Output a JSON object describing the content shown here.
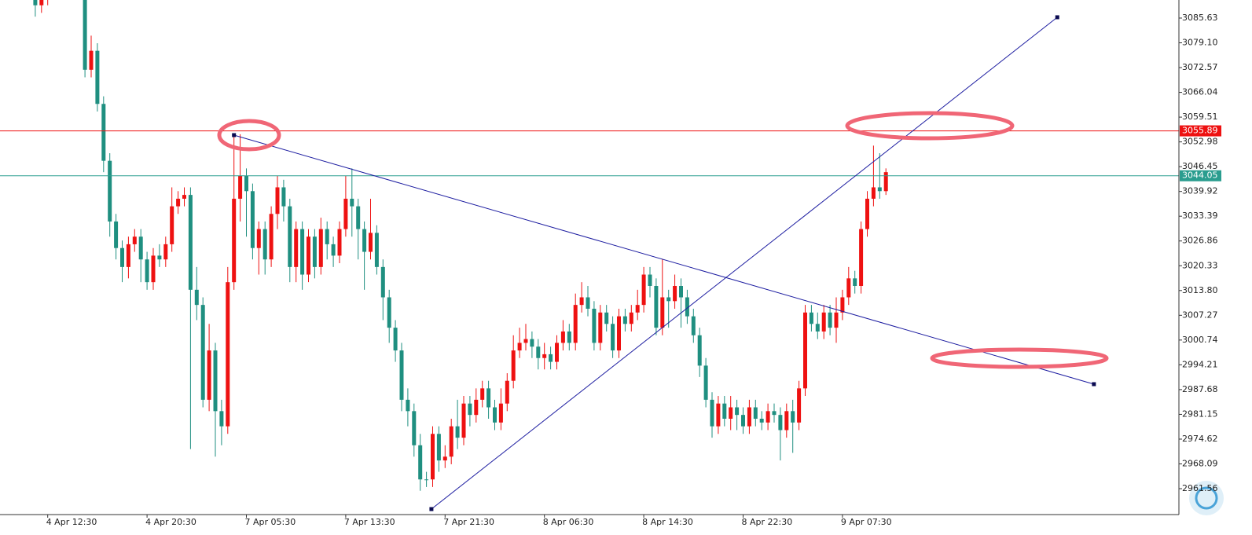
{
  "chart_data": {
    "type": "candlestick",
    "up_color": "#ee1111",
    "down_color": "#1f8f80",
    "ylim": [
      2954.73,
      3090.39
    ],
    "yticks": [
      3085.63,
      {
        "value": 3079.1,
        "label": "3079.10"
      },
      3072.57,
      3066.04,
      3059.51,
      3052.98,
      3046.45,
      3039.92,
      3033.39,
      3026.86,
      3020.33,
      {
        "value": 3013.8,
        "label": "3013.80"
      },
      3007.27,
      3000.74,
      2994.21,
      2987.68,
      2981.15,
      2974.62,
      2968.09,
      2961.56
    ],
    "x_labels": [
      {
        "index": 3,
        "label": "4 Apr 12:30"
      },
      {
        "index": 19,
        "label": "4 Apr 20:30"
      },
      {
        "index": 35,
        "label": "7 Apr 05:30"
      },
      {
        "index": 51,
        "label": "7 Apr 13:30"
      },
      {
        "index": 67,
        "label": "7 Apr 21:30"
      },
      {
        "index": 83,
        "label": "8 Apr 06:30"
      },
      {
        "index": 99,
        "label": "8 Apr 14:30"
      },
      {
        "index": 115,
        "label": "8 Apr 22:30"
      },
      {
        "index": 131,
        "label": "9 Apr 07:30"
      }
    ],
    "open": [
      3096,
      3093,
      3089,
      3091,
      3094,
      3095,
      3096,
      3094,
      3095,
      3093,
      3072,
      3077,
      3063,
      3048,
      3032,
      3025,
      3020,
      3026,
      3028,
      3022,
      3016,
      3023,
      3022,
      3026,
      3036,
      3038,
      3039,
      3014,
      3010,
      2985,
      2998,
      2982,
      2978,
      3016,
      3038,
      3044,
      3040,
      3025,
      3030,
      3022,
      3034,
      3041,
      3036,
      3020,
      3030,
      3018,
      3028,
      3020,
      3030,
      3026,
      3023,
      3030,
      3038,
      3036,
      3030,
      3024,
      3029,
      3020,
      3012,
      3004,
      2998,
      2985,
      2982,
      2973,
      2964,
      2964,
      2976,
      2969,
      2970,
      2978,
      2975,
      2984,
      2981,
      2985,
      2988,
      2983,
      2979,
      2984,
      2990,
      2998,
      3000,
      3001,
      2999,
      2996,
      2997,
      2995,
      3000,
      3003,
      3000,
      3010,
      3012,
      3009,
      3000,
      3008,
      3005,
      2998,
      3007,
      3005,
      3008,
      3010,
      3018,
      3015,
      3004,
      3012,
      3011,
      3015,
      3012,
      3007,
      3002,
      2994,
      2985,
      2978,
      2984,
      2980,
      2983,
      2981,
      2978,
      2983,
      2980,
      2979,
      2982,
      2981,
      2977,
      2982,
      2979,
      2988,
      3008,
      3005,
      3003,
      3008,
      3004,
      3008,
      3012,
      3017,
      3015,
      3030,
      3038,
      3041,
      3040
    ],
    "high": [
      3098,
      3095,
      3093,
      3096,
      3097,
      3098,
      3098,
      3097,
      3097,
      3095,
      3081,
      3079,
      3065,
      3050,
      3034,
      3027,
      3028,
      3030,
      3030,
      3024,
      3025,
      3026,
      3028,
      3041,
      3040,
      3041,
      3041,
      3020,
      3012,
      3005,
      3000,
      2985,
      3020,
      3055,
      3055,
      3046,
      3042,
      3032,
      3032,
      3036,
      3044,
      3043,
      3038,
      3032,
      3032,
      3030,
      3030,
      3033,
      3032,
      3028,
      3032,
      3044,
      3046,
      3038,
      3032,
      3038,
      3031,
      3022,
      3014,
      3006,
      3000,
      2988,
      2984,
      2976,
      2966,
      2978,
      2978,
      2973,
      2980,
      2985,
      2986,
      2986,
      2988,
      2990,
      2990,
      2985,
      2988,
      2992,
      3002,
      3004,
      3005,
      3003,
      3001,
      3000,
      2999,
      3002,
      3006,
      3005,
      3013,
      3016,
      3015,
      3011,
      3010,
      3010,
      3007,
      3009,
      3009,
      3010,
      3014,
      3020,
      3020,
      3017,
      3022,
      3014,
      3018,
      3017,
      3014,
      3009,
      3004,
      2996,
      2987,
      2986,
      2986,
      2986,
      2985,
      2983,
      2985,
      2985,
      2982,
      2984,
      2984,
      2983,
      2984,
      2985,
      2990,
      3010,
      3010,
      3008,
      3010,
      3010,
      3012,
      3014,
      3020,
      3019,
      3032,
      3040,
      3052,
      3050,
      3046
    ],
    "low": [
      3091,
      3086,
      3087,
      3089,
      3092,
      3093,
      3092,
      3092,
      3091,
      3070,
      3070,
      3061,
      3045,
      3028,
      3022,
      3016,
      3017,
      3024,
      3016,
      3014,
      3014,
      3020,
      3020,
      3024,
      3034,
      3036,
      2972,
      3006,
      2983,
      2982,
      2970,
      2973,
      2976,
      3014,
      3032,
      3028,
      3022,
      3018,
      3018,
      3020,
      3030,
      3032,
      3016,
      3016,
      3014,
      3016,
      3017,
      3018,
      3022,
      3020,
      3021,
      3028,
      3028,
      3022,
      3014,
      3022,
      3018,
      3006,
      3000,
      2995,
      2982,
      2978,
      2970,
      2961,
      2962,
      2962,
      2966,
      2967,
      2968,
      2972,
      2973,
      2978,
      2979,
      2983,
      2980,
      2977,
      2977,
      2982,
      2988,
      2996,
      2998,
      2996,
      2993,
      2993,
      2993,
      2993,
      2998,
      2998,
      2998,
      3008,
      3007,
      2998,
      2998,
      3003,
      2996,
      2996,
      3003,
      3003,
      3006,
      3008,
      3012,
      3002,
      3002,
      3004,
      3009,
      3004,
      3005,
      3000,
      2991,
      2983,
      2975,
      2976,
      2978,
      2977,
      2977,
      2976,
      2976,
      2978,
      2977,
      2977,
      2979,
      2969,
      2975,
      2971,
      2977,
      2986,
      3003,
      3001,
      3001,
      3002,
      3000,
      3006,
      3010,
      3013,
      3013,
      3028,
      3036,
      3038,
      3039
    ],
    "close": [
      3093,
      3089,
      3091,
      3094,
      3095,
      3096,
      3094,
      3095,
      3093,
      3072,
      3077,
      3063,
      3048,
      3032,
      3025,
      3020,
      3026,
      3028,
      3022,
      3016,
      3023,
      3022,
      3026,
      3036,
      3038,
      3039,
      3014,
      3010,
      2985,
      2998,
      2982,
      2978,
      3016,
      3038,
      3044,
      3040,
      3025,
      3030,
      3022,
      3034,
      3041,
      3036,
      3020,
      3030,
      3018,
      3028,
      3020,
      3030,
      3026,
      3023,
      3030,
      3038,
      3036,
      3030,
      3024,
      3029,
      3020,
      3012,
      3004,
      2998,
      2985,
      2982,
      2973,
      2964,
      2964,
      2976,
      2969,
      2970,
      2978,
      2975,
      2984,
      2981,
      2985,
      2988,
      2983,
      2979,
      2984,
      2990,
      2998,
      3000,
      3001,
      2999,
      2996,
      2997,
      2995,
      3000,
      3003,
      3000,
      3010,
      3012,
      3009,
      3000,
      3008,
      3005,
      2998,
      3007,
      3005,
      3008,
      3010,
      3018,
      3015,
      3004,
      3012,
      3011,
      3015,
      3012,
      3007,
      3002,
      2994,
      2985,
      2978,
      2984,
      2980,
      2983,
      2981,
      2978,
      2983,
      2980,
      2979,
      2982,
      2981,
      2977,
      2982,
      2979,
      2988,
      3008,
      3005,
      3003,
      3008,
      3004,
      3008,
      3012,
      3017,
      3015,
      3030,
      3038,
      3041,
      3040,
      3045
    ],
    "hlines": [
      {
        "value": 3055.89,
        "color": "#ee1111"
      },
      {
        "value": 3044.05,
        "color": "#2a9d8f"
      }
    ],
    "trendlines": [
      {
        "start": [
          33,
          3054.77
        ],
        "end": [
          171.5,
          2989.11
        ],
        "color": "#1c1ca0"
      },
      {
        "start": [
          64.8,
          2956.18
        ],
        "end": [
          165.6,
          3085.84
        ],
        "color": "#1c1ca0"
      }
    ]
  }
}
